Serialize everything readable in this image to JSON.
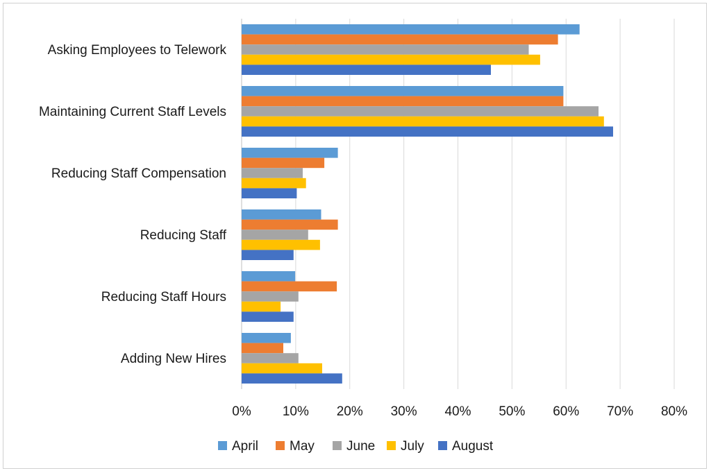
{
  "chart_data": {
    "type": "bar",
    "orientation": "horizontal",
    "title": "",
    "xlabel": "",
    "ylabel": "",
    "categories": [
      "Asking Employees to Telework",
      "Maintaining Current Staff Levels",
      "Reducing Staff Compensation",
      "Reducing Staff",
      "Reducing Staff Hours",
      "Adding New Hires"
    ],
    "series": [
      {
        "name": "April",
        "color": "#5b9bd5",
        "values": [
          62.5,
          59.5,
          17.8,
          14.7,
          9.9,
          9.1
        ]
      },
      {
        "name": "May",
        "color": "#ed7d31",
        "values": [
          58.5,
          59.5,
          15.3,
          17.8,
          17.6,
          7.7
        ]
      },
      {
        "name": "June",
        "color": "#a5a5a5",
        "values": [
          53.1,
          66.0,
          11.3,
          12.3,
          10.5,
          10.5
        ]
      },
      {
        "name": "July",
        "color": "#ffc000",
        "values": [
          55.2,
          67.0,
          11.9,
          14.5,
          7.2,
          14.9
        ]
      },
      {
        "name": "August",
        "color": "#4472c4",
        "values": [
          46.1,
          68.7,
          10.2,
          9.6,
          9.6,
          18.6
        ]
      }
    ],
    "xlim": [
      0,
      80
    ],
    "x_ticks": [
      "0%",
      "10%",
      "20%",
      "30%",
      "40%",
      "50%",
      "60%",
      "70%",
      "80%"
    ],
    "grid": true,
    "legend_position": "bottom"
  }
}
